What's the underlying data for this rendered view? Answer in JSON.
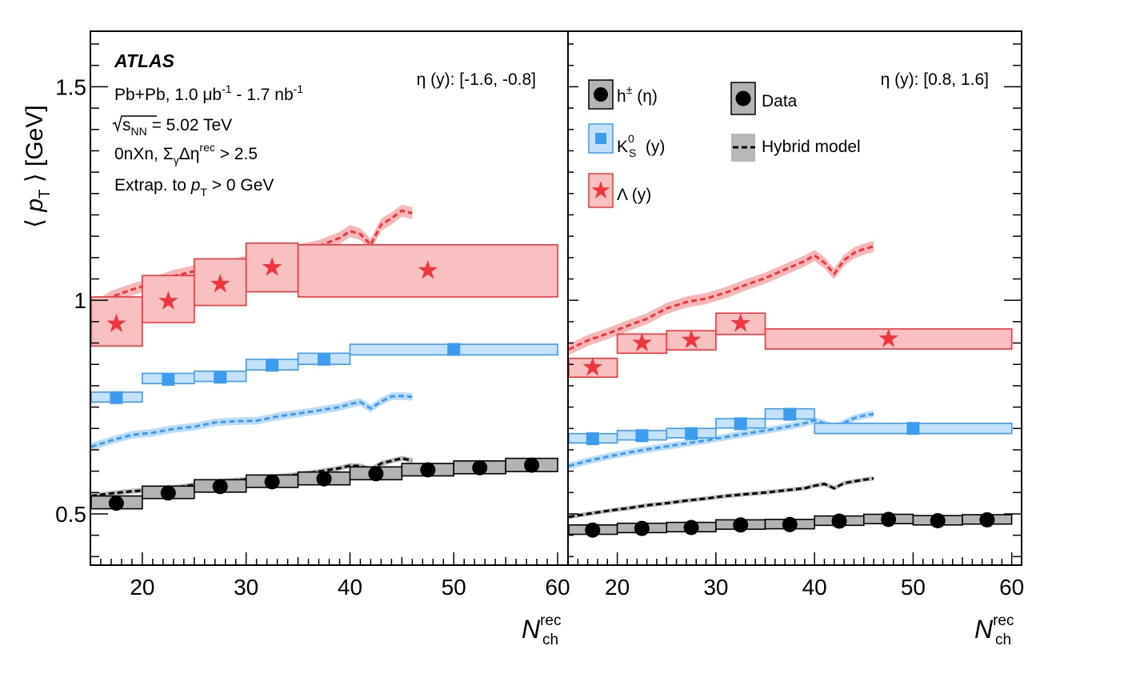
{
  "colors": {
    "charged": "#000000",
    "charged_fill": "#b3b3b3",
    "kshort": "#3d9cf0",
    "kshort_fill": "#c6e2fa",
    "lambda": "#f0363c",
    "lambda_fill": "#f9c0c2",
    "model_band_gray": "#b8b8b8",
    "model_band_blue": "#bcdcf5",
    "model_band_red": "#f7b6b8"
  },
  "chart_data": {
    "type": "scatter",
    "title": "ATLAS",
    "ylabel_parts": [
      "⟨ ",
      "p",
      "T",
      " ⟩ [GeV]"
    ],
    "xlabel_parts": [
      "N",
      "rec",
      "ch"
    ],
    "annotations": {
      "atlas_label": "ATLAS",
      "lumi": [
        "Pb+Pb, 1.0 μb",
        "-1",
        " - 1.7 nb",
        "-1"
      ],
      "energy": [
        "s",
        "NN",
        " = 5.02 TeV"
      ],
      "selection": [
        "0nXn, Σ",
        "γ",
        "Δη",
        "rec",
        " > 2.5"
      ],
      "extrap": [
        "Extrap. to ",
        "p",
        "T",
        " > 0 GeV"
      ]
    },
    "legend": {
      "species": [
        {
          "key": "charged",
          "parts": [
            "h",
            "±",
            " (η)"
          ],
          "marker": "circle"
        },
        {
          "key": "kshort",
          "parts": [
            "K",
            "0",
            "S",
            " (y)"
          ],
          "marker": "square"
        },
        {
          "key": "lambda",
          "parts": [
            "Λ",
            " (y)"
          ],
          "marker": "star"
        }
      ],
      "data_label": "Data",
      "model_label": "Hybrid model"
    },
    "panels": [
      {
        "label": "η (y): [-1.6, -0.8]",
        "xlim": [
          15,
          61
        ],
        "ylim": [
          0.38,
          1.63
        ],
        "xticks": [
          "20",
          "30",
          "40",
          "50",
          "60"
        ],
        "yticks": [
          "0.5",
          "1",
          "1.5"
        ],
        "series": [
          {
            "key": "charged",
            "points": [
              {
                "x": 17.5,
                "xlo": 15,
                "xhi": 20,
                "y": 0.525,
                "lo": 0.512,
                "hi": 0.542
              },
              {
                "x": 22.5,
                "xlo": 20,
                "xhi": 25,
                "y": 0.549,
                "lo": 0.536,
                "hi": 0.565
              },
              {
                "x": 27.5,
                "xlo": 25,
                "xhi": 30,
                "y": 0.564,
                "lo": 0.551,
                "hi": 0.58
              },
              {
                "x": 32.5,
                "xlo": 30,
                "xhi": 35,
                "y": 0.575,
                "lo": 0.562,
                "hi": 0.591
              },
              {
                "x": 37.5,
                "xlo": 35,
                "xhi": 40,
                "y": 0.582,
                "lo": 0.568,
                "hi": 0.598
              },
              {
                "x": 42.5,
                "xlo": 40,
                "xhi": 45,
                "y": 0.594,
                "lo": 0.58,
                "hi": 0.61
              },
              {
                "x": 47.5,
                "xlo": 45,
                "xhi": 50,
                "y": 0.603,
                "lo": 0.589,
                "hi": 0.618
              },
              {
                "x": 52.5,
                "xlo": 50,
                "xhi": 55,
                "y": 0.608,
                "lo": 0.594,
                "hi": 0.624
              },
              {
                "x": 57.5,
                "xlo": 55,
                "xhi": 60,
                "y": 0.614,
                "lo": 0.599,
                "hi": 0.63
              }
            ]
          },
          {
            "key": "kshort",
            "points": [
              {
                "x": 17.5,
                "xlo": 15,
                "xhi": 20,
                "y": 0.772,
                "lo": 0.762,
                "hi": 0.785
              },
              {
                "x": 22.5,
                "xlo": 20,
                "xhi": 25,
                "y": 0.815,
                "lo": 0.805,
                "hi": 0.829
              },
              {
                "x": 27.5,
                "xlo": 25,
                "xhi": 30,
                "y": 0.82,
                "lo": 0.81,
                "hi": 0.834
              },
              {
                "x": 32.5,
                "xlo": 30,
                "xhi": 35,
                "y": 0.848,
                "lo": 0.837,
                "hi": 0.862
              },
              {
                "x": 37.5,
                "xlo": 35,
                "xhi": 40,
                "y": 0.862,
                "lo": 0.85,
                "hi": 0.876
              },
              {
                "x": 50,
                "xlo": 40,
                "xhi": 60,
                "y": 0.885,
                "lo": 0.872,
                "hi": 0.897
              }
            ]
          },
          {
            "key": "lambda",
            "points": [
              {
                "x": 17.5,
                "xlo": 15,
                "xhi": 20,
                "y": 0.945,
                "lo": 0.893,
                "hi": 1.008
              },
              {
                "x": 22.5,
                "xlo": 20,
                "xhi": 25,
                "y": 0.998,
                "lo": 0.948,
                "hi": 1.058
              },
              {
                "x": 27.5,
                "xlo": 25,
                "xhi": 30,
                "y": 1.038,
                "lo": 0.988,
                "hi": 1.097
              },
              {
                "x": 32.5,
                "xlo": 30,
                "xhi": 35,
                "y": 1.077,
                "lo": 1.02,
                "hi": 1.134
              },
              {
                "x": 47.5,
                "xlo": 35,
                "xhi": 60,
                "y": 1.07,
                "lo": 1.008,
                "hi": 1.13
              }
            ]
          }
        ],
        "model": [
          {
            "key": "charged",
            "x": [
              15,
              17,
              19,
              21,
              23,
              25,
              27,
              29,
              31,
              33,
              35,
              37,
              39,
              40,
              41,
              42,
              43,
              44,
              45,
              46
            ],
            "y": [
              0.542,
              0.548,
              0.553,
              0.556,
              0.561,
              0.568,
              0.575,
              0.579,
              0.582,
              0.587,
              0.592,
              0.599,
              0.607,
              0.613,
              0.612,
              0.604,
              0.618,
              0.624,
              0.63,
              0.625
            ],
            "band": 0.006
          },
          {
            "key": "kshort",
            "x": [
              15,
              17,
              19,
              21,
              23,
              25,
              27,
              29,
              31,
              33,
              35,
              37,
              39,
              40,
              41,
              42,
              43,
              44,
              45,
              46
            ],
            "y": [
              0.657,
              0.672,
              0.685,
              0.69,
              0.699,
              0.704,
              0.714,
              0.717,
              0.718,
              0.728,
              0.735,
              0.742,
              0.75,
              0.757,
              0.762,
              0.747,
              0.763,
              0.775,
              0.776,
              0.774
            ],
            "band": 0.009
          },
          {
            "key": "lambda",
            "x": [
              15,
              17,
              19,
              21,
              23,
              25,
              27,
              29,
              31,
              33,
              35,
              37,
              39,
              40,
              41,
              42,
              43,
              44,
              45,
              46
            ],
            "y": [
              0.98,
              1.008,
              1.025,
              1.04,
              1.057,
              1.068,
              1.08,
              1.085,
              1.095,
              1.103,
              1.117,
              1.127,
              1.146,
              1.162,
              1.155,
              1.13,
              1.177,
              1.192,
              1.21,
              1.204
            ],
            "band": 0.014
          }
        ]
      },
      {
        "label": "η (y): [0.8, 1.6]",
        "xlim": [
          15,
          61
        ],
        "ylim": [
          0.38,
          1.63
        ],
        "xticks": [
          "20",
          "30",
          "40",
          "50",
          "60"
        ],
        "yticks": [
          "0.5",
          "1",
          "1.5"
        ],
        "series": [
          {
            "key": "charged",
            "points": [
              {
                "x": 17.5,
                "xlo": 15,
                "xhi": 20,
                "y": 0.462,
                "lo": 0.452,
                "hi": 0.474
              },
              {
                "x": 22.5,
                "xlo": 20,
                "xhi": 25,
                "y": 0.466,
                "lo": 0.456,
                "hi": 0.478
              },
              {
                "x": 27.5,
                "xlo": 25,
                "xhi": 30,
                "y": 0.468,
                "lo": 0.458,
                "hi": 0.48
              },
              {
                "x": 32.5,
                "xlo": 30,
                "xhi": 35,
                "y": 0.474,
                "lo": 0.464,
                "hi": 0.486
              },
              {
                "x": 37.5,
                "xlo": 35,
                "xhi": 40,
                "y": 0.475,
                "lo": 0.465,
                "hi": 0.487
              },
              {
                "x": 42.5,
                "xlo": 40,
                "xhi": 45,
                "y": 0.483,
                "lo": 0.473,
                "hi": 0.495
              },
              {
                "x": 47.5,
                "xlo": 45,
                "xhi": 50,
                "y": 0.487,
                "lo": 0.477,
                "hi": 0.499
              },
              {
                "x": 52.5,
                "xlo": 50,
                "xhi": 55,
                "y": 0.484,
                "lo": 0.474,
                "hi": 0.496
              },
              {
                "x": 57.5,
                "xlo": 55,
                "xhi": 60,
                "y": 0.486,
                "lo": 0.476,
                "hi": 0.498
              }
            ]
          },
          {
            "key": "kshort",
            "points": [
              {
                "x": 17.5,
                "xlo": 15,
                "xhi": 20,
                "y": 0.676,
                "lo": 0.666,
                "hi": 0.688
              },
              {
                "x": 22.5,
                "xlo": 20,
                "xhi": 25,
                "y": 0.683,
                "lo": 0.673,
                "hi": 0.695
              },
              {
                "x": 27.5,
                "xlo": 25,
                "xhi": 30,
                "y": 0.688,
                "lo": 0.678,
                "hi": 0.7
              },
              {
                "x": 32.5,
                "xlo": 30,
                "xhi": 35,
                "y": 0.711,
                "lo": 0.701,
                "hi": 0.723
              },
              {
                "x": 37.5,
                "xlo": 35,
                "xhi": 40,
                "y": 0.733,
                "lo": 0.722,
                "hi": 0.746
              },
              {
                "x": 50,
                "xlo": 40,
                "xhi": 60,
                "y": 0.7,
                "lo": 0.688,
                "hi": 0.712
              }
            ]
          },
          {
            "key": "lambda",
            "points": [
              {
                "x": 17.5,
                "xlo": 15,
                "xhi": 20,
                "y": 0.843,
                "lo": 0.82,
                "hi": 0.864
              },
              {
                "x": 22.5,
                "xlo": 20,
                "xhi": 25,
                "y": 0.9,
                "lo": 0.876,
                "hi": 0.921
              },
              {
                "x": 27.5,
                "xlo": 25,
                "xhi": 30,
                "y": 0.907,
                "lo": 0.884,
                "hi": 0.929
              },
              {
                "x": 32.5,
                "xlo": 30,
                "xhi": 35,
                "y": 0.946,
                "lo": 0.92,
                "hi": 0.97
              },
              {
                "x": 47.5,
                "xlo": 35,
                "xhi": 60,
                "y": 0.91,
                "lo": 0.886,
                "hi": 0.933
              }
            ]
          }
        ],
        "model": [
          {
            "key": "charged",
            "x": [
              15,
              17,
              19,
              21,
              23,
              25,
              27,
              29,
              31,
              33,
              35,
              37,
              39,
              40,
              41,
              42,
              43,
              44,
              45,
              46
            ],
            "y": [
              0.493,
              0.5,
              0.507,
              0.513,
              0.52,
              0.525,
              0.531,
              0.536,
              0.542,
              0.546,
              0.55,
              0.555,
              0.56,
              0.566,
              0.57,
              0.56,
              0.572,
              0.576,
              0.58,
              0.583
            ],
            "band": 0.005
          },
          {
            "key": "kshort",
            "x": [
              15,
              17,
              19,
              21,
              23,
              25,
              27,
              29,
              31,
              33,
              35,
              37,
              39,
              40,
              41,
              42,
              43,
              44,
              45,
              46
            ],
            "y": [
              0.612,
              0.624,
              0.634,
              0.643,
              0.651,
              0.658,
              0.665,
              0.672,
              0.68,
              0.688,
              0.695,
              0.703,
              0.712,
              0.719,
              0.712,
              0.702,
              0.713,
              0.724,
              0.73,
              0.734
            ],
            "band": 0.008
          },
          {
            "key": "lambda",
            "x": [
              15,
              17,
              19,
              21,
              23,
              25,
              27,
              29,
              31,
              33,
              35,
              37,
              39,
              40,
              41,
              42,
              43,
              44,
              45,
              46
            ],
            "y": [
              0.885,
              0.906,
              0.922,
              0.94,
              0.957,
              0.981,
              0.996,
              1.004,
              1.018,
              1.036,
              1.052,
              1.072,
              1.092,
              1.105,
              1.088,
              1.062,
              1.094,
              1.111,
              1.12,
              1.126
            ],
            "band": 0.013
          }
        ]
      }
    ]
  }
}
